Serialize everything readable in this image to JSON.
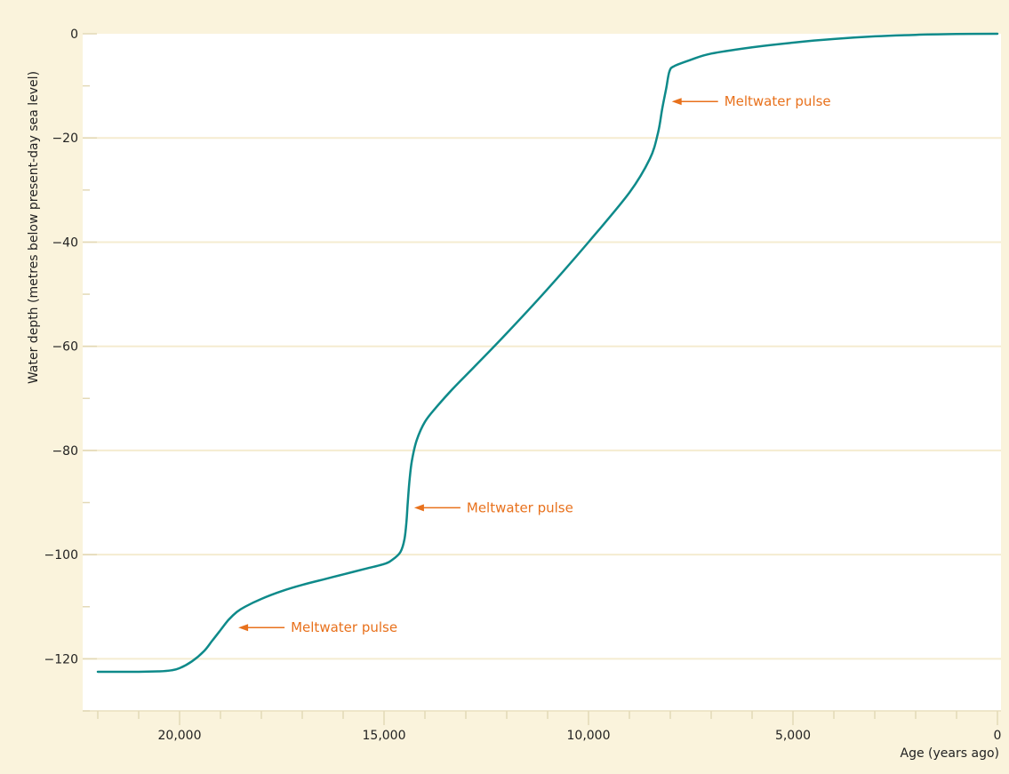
{
  "chart_data": {
    "type": "line",
    "xlabel": "Age (years ago)",
    "ylabel": "Water depth (metres below present-day sea level)",
    "x_reversed": true,
    "xlim": [
      22000,
      0
    ],
    "ylim": [
      -130,
      0
    ],
    "x_ticks": [
      20000,
      15000,
      10000,
      5000,
      0
    ],
    "x_tick_labels": [
      "20,000",
      "15,000",
      "10,000",
      "5,000",
      "0"
    ],
    "y_ticks": [
      0,
      -20,
      -40,
      -60,
      -80,
      -100,
      -120
    ],
    "y_tick_labels": [
      "0",
      "−20",
      "−40",
      "−60",
      "−80",
      "−100",
      "−120"
    ],
    "grid": "horizontal",
    "series": [
      {
        "color": "#0e8a8a",
        "points": [
          [
            22000,
            -122.5
          ],
          [
            21000,
            -122.5
          ],
          [
            20500,
            -122.4
          ],
          [
            20200,
            -122.2
          ],
          [
            20000,
            -121.8
          ],
          [
            19700,
            -120.5
          ],
          [
            19400,
            -118.5
          ],
          [
            19200,
            -116.5
          ],
          [
            19000,
            -114.5
          ],
          [
            18800,
            -112.5
          ],
          [
            18600,
            -111.0
          ],
          [
            18400,
            -110.0
          ],
          [
            18000,
            -108.5
          ],
          [
            17500,
            -107.0
          ],
          [
            17000,
            -105.8
          ],
          [
            16500,
            -104.8
          ],
          [
            16000,
            -103.8
          ],
          [
            15500,
            -102.8
          ],
          [
            15000,
            -101.8
          ],
          [
            14800,
            -101.0
          ],
          [
            14600,
            -99.5
          ],
          [
            14500,
            -97.0
          ],
          [
            14450,
            -93.5
          ],
          [
            14420,
            -90.0
          ],
          [
            14380,
            -86.0
          ],
          [
            14320,
            -82.0
          ],
          [
            14200,
            -78.0
          ],
          [
            14000,
            -74.5
          ],
          [
            13700,
            -71.5
          ],
          [
            13300,
            -68.0
          ],
          [
            12800,
            -64.0
          ],
          [
            12000,
            -57.5
          ],
          [
            11000,
            -49.0
          ],
          [
            10000,
            -40.0
          ],
          [
            9000,
            -30.5
          ],
          [
            8500,
            -24.0
          ],
          [
            8300,
            -19.0
          ],
          [
            8200,
            -14.5
          ],
          [
            8100,
            -10.5
          ],
          [
            8020,
            -7.2
          ],
          [
            7900,
            -6.2
          ],
          [
            7500,
            -5.0
          ],
          [
            7000,
            -3.8
          ],
          [
            6000,
            -2.6
          ],
          [
            5000,
            -1.7
          ],
          [
            4000,
            -1.0
          ],
          [
            3000,
            -0.5
          ],
          [
            2000,
            -0.2
          ],
          [
            1000,
            -0.05
          ],
          [
            0,
            0
          ]
        ]
      }
    ],
    "annotations": [
      {
        "text": "Meltwater pulse",
        "x": 8050,
        "y": -13
      },
      {
        "text": "Meltwater pulse",
        "x": 14350,
        "y": -91
      },
      {
        "text": "Meltwater pulse",
        "x": 18650,
        "y": -114
      }
    ],
    "colors": {
      "background": "#faf3dc",
      "plot_area": "#ffffff",
      "gridline": "#f5ecd0",
      "line": "#0e8a8a",
      "annotation": "#e8711c"
    }
  }
}
